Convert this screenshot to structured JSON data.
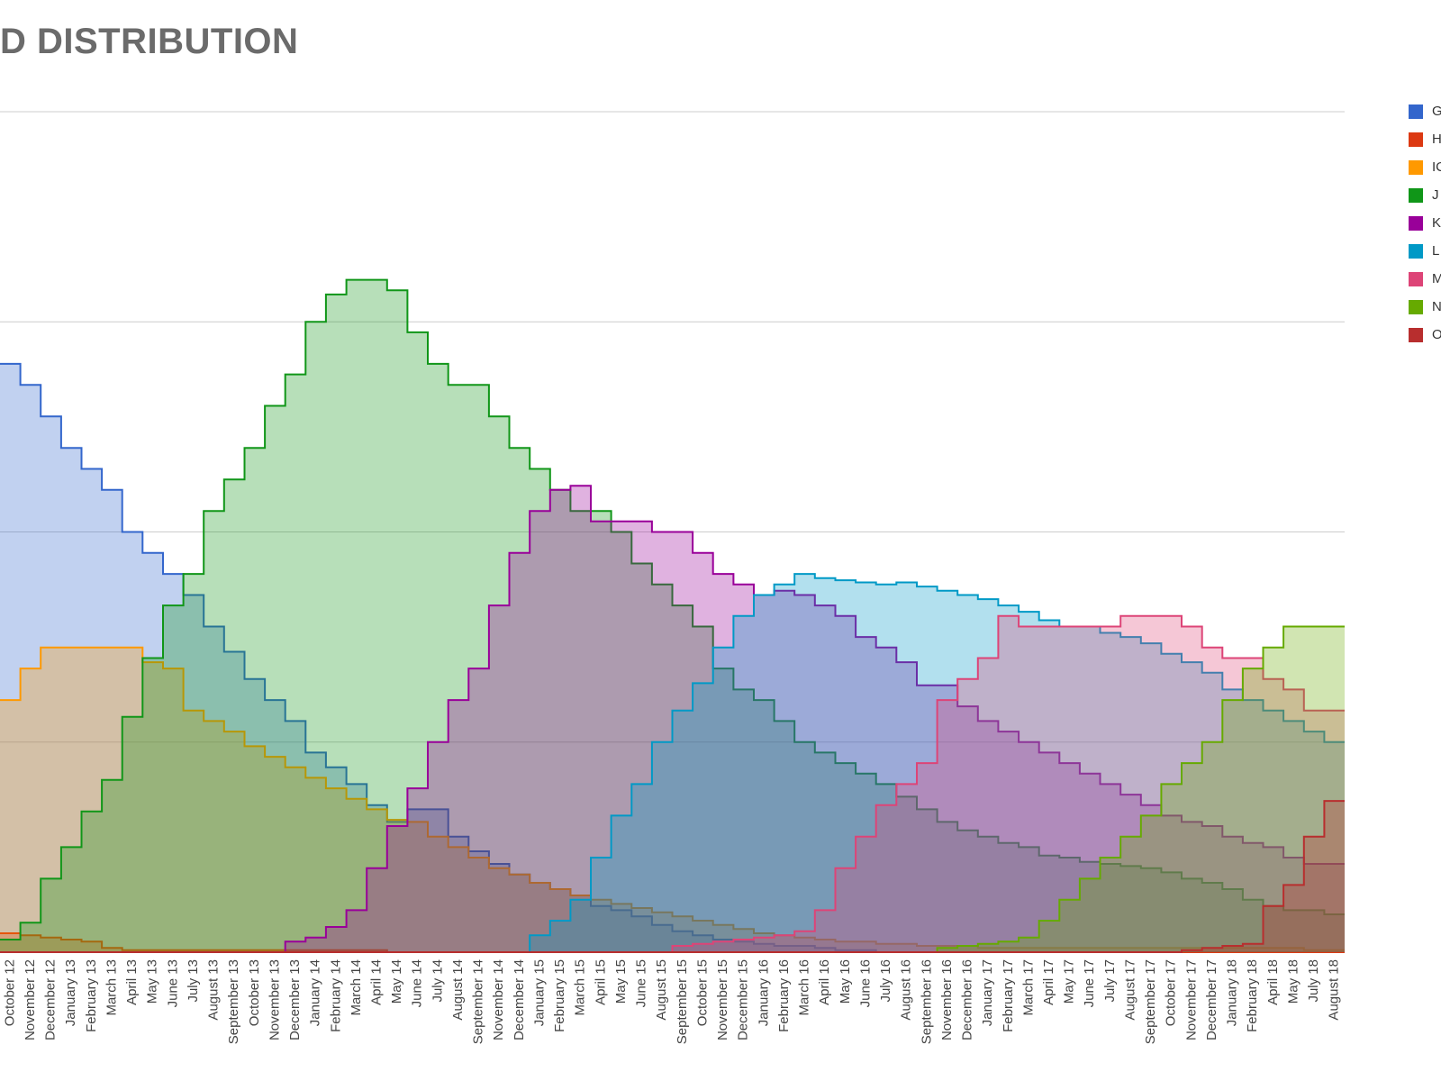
{
  "title": "D DISTRIBUTION",
  "chart_data": {
    "type": "area",
    "step": true,
    "grid": true,
    "legend_position": "right",
    "ylim": [
      0,
      4
    ],
    "yticks": [
      0,
      1,
      2,
      3,
      4
    ],
    "x": [
      "October 12",
      "November 12",
      "December 12",
      "January 13",
      "February 13",
      "March 13",
      "April 13",
      "May 13",
      "June 13",
      "July 13",
      "August 13",
      "September 13",
      "October 13",
      "November 13",
      "December 13",
      "January 14",
      "February 14",
      "March 14",
      "April 14",
      "May 14",
      "June 14",
      "July 14",
      "August 14",
      "September 14",
      "November 14",
      "December 14",
      "January 15",
      "February 15",
      "March 15",
      "April 15",
      "May 15",
      "June 15",
      "August 15",
      "September 15",
      "October 15",
      "November 15",
      "December 15",
      "January 16",
      "February 16",
      "March 16",
      "April 16",
      "May 16",
      "June 16",
      "July 16",
      "August 16",
      "September 16",
      "November 16",
      "December 16",
      "January 17",
      "February 17",
      "March 17",
      "April 17",
      "May 17",
      "June 17",
      "July 17",
      "August 17",
      "September 17",
      "October 17",
      "November 17",
      "December 17",
      "January 18",
      "February 18",
      "April 18",
      "May 18",
      "July 18",
      "August 18"
    ],
    "series": [
      {
        "name": "G",
        "color": "#3366cc",
        "values": [
          2.8,
          2.7,
          2.55,
          2.4,
          2.3,
          2.2,
          2.0,
          1.9,
          1.8,
          1.7,
          1.55,
          1.43,
          1.3,
          1.2,
          1.1,
          0.95,
          0.88,
          0.8,
          0.7,
          0.62,
          0.68,
          0.68,
          0.55,
          0.48,
          0.42,
          0.37,
          0.33,
          0.3,
          0.27,
          0.22,
          0.2,
          0.17,
          0.13,
          0.1,
          0.08,
          0.06,
          0.05,
          0.04,
          0.03,
          0.03,
          0.02,
          0.01,
          0.01,
          0.0,
          0.0,
          0.0,
          0.0,
          0.0,
          0.0,
          0.0,
          0.0,
          0.0,
          0.0,
          0.0,
          0.0,
          0.0,
          0.0,
          0.0,
          0.0,
          0.0,
          0.0,
          0.0,
          0.0,
          0.0,
          0.0,
          0.0
        ]
      },
      {
        "name": "H",
        "color": "#dc3912",
        "values": [
          0.09,
          0.08,
          0.07,
          0.06,
          0.05,
          0.02,
          0.01,
          0.01,
          0.01,
          0.01,
          0.01,
          0.01,
          0.01,
          0.01,
          0.01,
          0.01,
          0.01,
          0.01,
          0.01,
          0.0,
          0.0,
          0.0,
          0.0,
          0.0,
          0.0,
          0.0,
          0.0,
          0.0,
          0.0,
          0.0,
          0.0,
          0.0,
          0.0,
          0.0,
          0.0,
          0.0,
          0.0,
          0.0,
          0.0,
          0.0,
          0.0,
          0.0,
          0.0,
          0.0,
          0.0,
          0.0,
          0.0,
          0.0,
          0.0,
          0.0,
          0.0,
          0.0,
          0.0,
          0.0,
          0.0,
          0.0,
          0.0,
          0.0,
          0.0,
          0.0,
          0.0,
          0.0,
          0.0,
          0.0,
          0.0,
          0.0
        ]
      },
      {
        "name": "IC",
        "color": "#ff9900",
        "values": [
          1.2,
          1.35,
          1.45,
          1.45,
          1.45,
          1.45,
          1.45,
          1.38,
          1.35,
          1.15,
          1.1,
          1.05,
          0.98,
          0.93,
          0.88,
          0.83,
          0.78,
          0.73,
          0.68,
          0.63,
          0.62,
          0.55,
          0.5,
          0.45,
          0.4,
          0.37,
          0.33,
          0.3,
          0.27,
          0.25,
          0.23,
          0.21,
          0.19,
          0.17,
          0.15,
          0.13,
          0.11,
          0.09,
          0.08,
          0.07,
          0.06,
          0.05,
          0.05,
          0.04,
          0.04,
          0.03,
          0.03,
          0.03,
          0.02,
          0.02,
          0.02,
          0.02,
          0.02,
          0.02,
          0.02,
          0.02,
          0.02,
          0.02,
          0.02,
          0.02,
          0.02,
          0.02,
          0.02,
          0.02,
          0.01,
          0.01
        ]
      },
      {
        "name": "J",
        "color": "#109618",
        "values": [
          0.06,
          0.14,
          0.35,
          0.5,
          0.67,
          0.82,
          1.12,
          1.4,
          1.65,
          1.8,
          2.1,
          2.25,
          2.4,
          2.6,
          2.75,
          3.0,
          3.13,
          3.2,
          3.2,
          3.15,
          2.95,
          2.8,
          2.7,
          2.7,
          2.55,
          2.4,
          2.3,
          2.2,
          2.1,
          2.1,
          2.0,
          1.85,
          1.75,
          1.65,
          1.55,
          1.35,
          1.25,
          1.2,
          1.1,
          1.0,
          0.95,
          0.9,
          0.85,
          0.8,
          0.74,
          0.68,
          0.62,
          0.58,
          0.55,
          0.52,
          0.5,
          0.46,
          0.45,
          0.43,
          0.42,
          0.41,
          0.4,
          0.38,
          0.35,
          0.33,
          0.3,
          0.25,
          0.22,
          0.2,
          0.2,
          0.18
        ]
      },
      {
        "name": "K",
        "color": "#990099",
        "values": [
          0.0,
          0.0,
          0.0,
          0.0,
          0.0,
          0.0,
          0.0,
          0.0,
          0.0,
          0.0,
          0.0,
          0.0,
          0.0,
          0.0,
          0.05,
          0.07,
          0.12,
          0.2,
          0.4,
          0.6,
          0.78,
          1.0,
          1.2,
          1.35,
          1.65,
          1.9,
          2.1,
          2.2,
          2.22,
          2.05,
          2.05,
          2.05,
          2.0,
          2.0,
          1.9,
          1.8,
          1.75,
          1.7,
          1.72,
          1.7,
          1.65,
          1.6,
          1.5,
          1.45,
          1.38,
          1.27,
          1.27,
          1.17,
          1.1,
          1.05,
          1.0,
          0.95,
          0.9,
          0.85,
          0.8,
          0.75,
          0.7,
          0.65,
          0.62,
          0.6,
          0.55,
          0.52,
          0.5,
          0.45,
          0.42,
          0.42
        ]
      },
      {
        "name": "L",
        "color": "#0099c6",
        "values": [
          0.0,
          0.0,
          0.0,
          0.0,
          0.0,
          0.0,
          0.0,
          0.0,
          0.0,
          0.0,
          0.0,
          0.0,
          0.0,
          0.0,
          0.0,
          0.0,
          0.0,
          0.0,
          0.0,
          0.0,
          0.0,
          0.0,
          0.0,
          0.0,
          0.0,
          0.0,
          0.08,
          0.15,
          0.25,
          0.45,
          0.65,
          0.8,
          1.0,
          1.15,
          1.28,
          1.45,
          1.6,
          1.7,
          1.75,
          1.8,
          1.78,
          1.77,
          1.76,
          1.75,
          1.76,
          1.74,
          1.72,
          1.7,
          1.68,
          1.65,
          1.62,
          1.58,
          1.55,
          1.55,
          1.52,
          1.5,
          1.47,
          1.42,
          1.38,
          1.33,
          1.25,
          1.2,
          1.15,
          1.1,
          1.05,
          1.0
        ]
      },
      {
        "name": "M",
        "color": "#dd4477",
        "values": [
          0.0,
          0.0,
          0.0,
          0.0,
          0.0,
          0.0,
          0.0,
          0.0,
          0.0,
          0.0,
          0.0,
          0.0,
          0.0,
          0.0,
          0.0,
          0.0,
          0.0,
          0.0,
          0.0,
          0.0,
          0.0,
          0.0,
          0.0,
          0.0,
          0.0,
          0.0,
          0.0,
          0.0,
          0.0,
          0.0,
          0.0,
          0.0,
          0.0,
          0.03,
          0.04,
          0.05,
          0.06,
          0.07,
          0.08,
          0.1,
          0.2,
          0.4,
          0.55,
          0.7,
          0.8,
          0.9,
          1.2,
          1.3,
          1.4,
          1.6,
          1.55,
          1.55,
          1.55,
          1.55,
          1.55,
          1.6,
          1.6,
          1.6,
          1.55,
          1.45,
          1.4,
          1.4,
          1.3,
          1.25,
          1.15,
          1.15
        ]
      },
      {
        "name": "N",
        "color": "#66aa00",
        "values": [
          0.0,
          0.0,
          0.0,
          0.0,
          0.0,
          0.0,
          0.0,
          0.0,
          0.0,
          0.0,
          0.0,
          0.0,
          0.0,
          0.0,
          0.0,
          0.0,
          0.0,
          0.0,
          0.0,
          0.0,
          0.0,
          0.0,
          0.0,
          0.0,
          0.0,
          0.0,
          0.0,
          0.0,
          0.0,
          0.0,
          0.0,
          0.0,
          0.0,
          0.0,
          0.0,
          0.0,
          0.0,
          0.0,
          0.0,
          0.0,
          0.0,
          0.0,
          0.0,
          0.0,
          0.0,
          0.0,
          0.02,
          0.03,
          0.04,
          0.05,
          0.07,
          0.15,
          0.25,
          0.35,
          0.45,
          0.55,
          0.65,
          0.8,
          0.9,
          1.0,
          1.2,
          1.35,
          1.45,
          1.55,
          1.55,
          1.55
        ]
      },
      {
        "name": "O",
        "color": "#b82e2e",
        "values": [
          0.0,
          0.0,
          0.0,
          0.0,
          0.0,
          0.0,
          0.0,
          0.0,
          0.0,
          0.0,
          0.0,
          0.0,
          0.0,
          0.0,
          0.0,
          0.0,
          0.0,
          0.0,
          0.0,
          0.0,
          0.0,
          0.0,
          0.0,
          0.0,
          0.0,
          0.0,
          0.0,
          0.0,
          0.0,
          0.0,
          0.0,
          0.0,
          0.0,
          0.0,
          0.0,
          0.0,
          0.0,
          0.0,
          0.0,
          0.0,
          0.0,
          0.0,
          0.0,
          0.0,
          0.0,
          0.0,
          0.0,
          0.0,
          0.0,
          0.0,
          0.0,
          0.0,
          0.0,
          0.0,
          0.0,
          0.0,
          0.0,
          0.0,
          0.01,
          0.02,
          0.03,
          0.04,
          0.22,
          0.32,
          0.55,
          0.72
        ]
      }
    ]
  }
}
